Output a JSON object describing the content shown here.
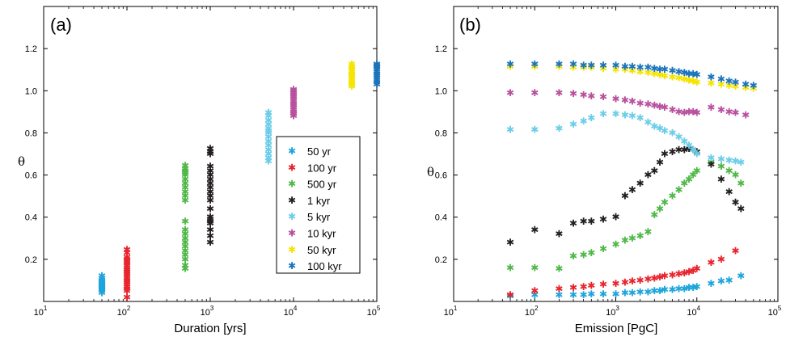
{
  "chart_data": [
    {
      "type": "scatter",
      "panel_label": "(a)",
      "xlabel": "Duration [yrs]",
      "ylabel": "θ",
      "xscale": "log",
      "xlim": [
        10,
        100000
      ],
      "ylim": [
        0,
        1.4
      ],
      "xticks": [
        {
          "value": 10,
          "base": "10",
          "exp": "1"
        },
        {
          "value": 100,
          "base": "10",
          "exp": "2"
        },
        {
          "value": 1000,
          "base": "10",
          "exp": "3"
        },
        {
          "value": 10000,
          "base": "10",
          "exp": "4"
        },
        {
          "value": 100000,
          "base": "10",
          "exp": "5"
        }
      ],
      "yticks": [
        "0.2",
        "0.4",
        "0.6",
        "0.8",
        "1.0",
        "1.2"
      ],
      "grid": false,
      "legend_position": "right",
      "series": [
        {
          "name": "50 yr",
          "color": "#1ea5dc",
          "x": [
            50,
            50,
            50,
            50,
            50,
            50,
            50,
            50,
            50,
            50,
            50,
            50,
            50,
            50
          ],
          "y": [
            0.04,
            0.05,
            0.055,
            0.06,
            0.065,
            0.07,
            0.075,
            0.08,
            0.085,
            0.09,
            0.095,
            0.1,
            0.11,
            0.12
          ]
        },
        {
          "name": "100 yr",
          "color": "#e8242d",
          "x": [
            100,
            100,
            100,
            100,
            100,
            100,
            100,
            100,
            100,
            100,
            100,
            100,
            100,
            100,
            100,
            100,
            100,
            100,
            100,
            100
          ],
          "y": [
            0.02,
            0.05,
            0.06,
            0.07,
            0.08,
            0.09,
            0.1,
            0.11,
            0.12,
            0.13,
            0.14,
            0.15,
            0.16,
            0.17,
            0.18,
            0.19,
            0.2,
            0.21,
            0.23,
            0.245
          ]
        },
        {
          "name": "500 yr",
          "color": "#50b848",
          "x": [
            500,
            500,
            500,
            500,
            500,
            500,
            500,
            500,
            500,
            500,
            500,
            500,
            500,
            500,
            500,
            500,
            500,
            500,
            500,
            500,
            500,
            500
          ],
          "y": [
            0.155,
            0.17,
            0.2,
            0.22,
            0.24,
            0.26,
            0.28,
            0.3,
            0.32,
            0.34,
            0.38,
            0.48,
            0.5,
            0.52,
            0.54,
            0.56,
            0.58,
            0.6,
            0.61,
            0.62,
            0.63,
            0.645
          ]
        },
        {
          "name": "1 kyr",
          "color": "#231f20",
          "x": [
            1000,
            1000,
            1000,
            1000,
            1000,
            1000,
            1000,
            1000,
            1000,
            1000,
            1000,
            1000,
            1000,
            1000,
            1000,
            1000,
            1000,
            1000,
            1000,
            1000
          ],
          "y": [
            0.28,
            0.31,
            0.34,
            0.37,
            0.38,
            0.39,
            0.4,
            0.44,
            0.48,
            0.5,
            0.52,
            0.54,
            0.56,
            0.58,
            0.6,
            0.62,
            0.64,
            0.7,
            0.71,
            0.725
          ]
        },
        {
          "name": "5 kyr",
          "color": "#6ccde8",
          "x": [
            5000,
            5000,
            5000,
            5000,
            5000,
            5000,
            5000,
            5000,
            5000,
            5000,
            5000,
            5000,
            5000,
            5000
          ],
          "y": [
            0.665,
            0.68,
            0.7,
            0.72,
            0.74,
            0.76,
            0.78,
            0.8,
            0.81,
            0.82,
            0.84,
            0.86,
            0.88,
            0.895
          ]
        },
        {
          "name": "10 kyr",
          "color": "#b8509e",
          "x": [
            10000,
            10000,
            10000,
            10000,
            10000,
            10000,
            10000,
            10000,
            10000,
            10000,
            10000,
            10000,
            10000,
            10000
          ],
          "y": [
            0.88,
            0.89,
            0.9,
            0.91,
            0.92,
            0.93,
            0.94,
            0.95,
            0.96,
            0.97,
            0.98,
            0.99,
            1.0,
            1.005
          ]
        },
        {
          "name": "50 kyr",
          "color": "#f5e400",
          "x": [
            50000,
            50000,
            50000,
            50000,
            50000,
            50000,
            50000,
            50000,
            50000,
            50000,
            50000,
            50000
          ],
          "y": [
            1.02,
            1.03,
            1.04,
            1.05,
            1.06,
            1.07,
            1.08,
            1.09,
            1.1,
            1.11,
            1.115,
            1.125
          ]
        },
        {
          "name": "100 kyr",
          "color": "#1a74bb",
          "x": [
            100000,
            100000,
            100000,
            100000,
            100000,
            100000,
            100000,
            100000,
            100000,
            100000,
            100000,
            100000
          ],
          "y": [
            1.03,
            1.04,
            1.05,
            1.06,
            1.07,
            1.08,
            1.09,
            1.1,
            1.11,
            1.115,
            1.12,
            1.125
          ]
        }
      ]
    },
    {
      "type": "scatter",
      "panel_label": "(b)",
      "xlabel": "Emission  [PgC]",
      "ylabel": "θ",
      "xscale": "log",
      "xlim": [
        10,
        100000
      ],
      "ylim": [
        0,
        1.4
      ],
      "xticks": [
        {
          "value": 10,
          "base": "10",
          "exp": "1"
        },
        {
          "value": 100,
          "base": "10",
          "exp": "2"
        },
        {
          "value": 1000,
          "base": "10",
          "exp": "3"
        },
        {
          "value": 10000,
          "base": "10",
          "exp": "4"
        },
        {
          "value": 100000,
          "base": "10",
          "exp": "5"
        }
      ],
      "yticks": [
        "0.2",
        "0.4",
        "0.6",
        "0.8",
        "1.0",
        "1.2"
      ],
      "grid": false,
      "series": [
        {
          "name": "50 yr",
          "color": "#1ea5dc",
          "x": [
            50,
            100,
            200,
            300,
            400,
            500,
            700,
            1000,
            1300,
            1600,
            2000,
            2500,
            3000,
            3500,
            4000,
            5000,
            6000,
            7000,
            8000,
            9000,
            10000,
            15000,
            20000,
            25000,
            35000
          ],
          "y": [
            0.025,
            0.03,
            0.03,
            0.03,
            0.03,
            0.035,
            0.035,
            0.035,
            0.04,
            0.04,
            0.045,
            0.045,
            0.05,
            0.05,
            0.055,
            0.055,
            0.06,
            0.06,
            0.065,
            0.065,
            0.07,
            0.085,
            0.095,
            0.1,
            0.12
          ]
        },
        {
          "name": "100 yr",
          "color": "#e8242d",
          "x": [
            50,
            100,
            200,
            300,
            400,
            500,
            700,
            1000,
            1300,
            1600,
            2000,
            2500,
            3000,
            3500,
            4000,
            5000,
            6000,
            7000,
            8000,
            9000,
            10000,
            15000,
            20000,
            30000
          ],
          "y": [
            0.03,
            0.05,
            0.06,
            0.065,
            0.07,
            0.075,
            0.08,
            0.085,
            0.09,
            0.095,
            0.1,
            0.105,
            0.11,
            0.115,
            0.12,
            0.125,
            0.13,
            0.135,
            0.14,
            0.145,
            0.155,
            0.185,
            0.2,
            0.24
          ]
        },
        {
          "name": "500 yr",
          "color": "#50b848",
          "x": [
            50,
            100,
            200,
            300,
            400,
            500,
            700,
            1000,
            1300,
            1600,
            2000,
            2500,
            3000,
            3500,
            4000,
            5000,
            6000,
            7000,
            8000,
            9000,
            10000,
            15000,
            20000,
            25000,
            30000,
            35000
          ],
          "y": [
            0.16,
            0.16,
            0.155,
            0.215,
            0.22,
            0.23,
            0.25,
            0.27,
            0.29,
            0.3,
            0.31,
            0.33,
            0.41,
            0.44,
            0.47,
            0.5,
            0.53,
            0.56,
            0.58,
            0.6,
            0.62,
            0.66,
            0.64,
            0.62,
            0.6,
            0.56
          ]
        },
        {
          "name": "1 kyr",
          "color": "#231f20",
          "x": [
            50,
            100,
            200,
            300,
            400,
            500,
            700,
            1000,
            1300,
            1600,
            2000,
            2500,
            3000,
            3500,
            4000,
            5000,
            6000,
            7000,
            8000,
            9000,
            10000,
            15000,
            20000,
            25000,
            30000,
            35000
          ],
          "y": [
            0.28,
            0.34,
            0.32,
            0.37,
            0.38,
            0.38,
            0.39,
            0.4,
            0.5,
            0.53,
            0.56,
            0.6,
            0.62,
            0.66,
            0.7,
            0.71,
            0.72,
            0.72,
            0.725,
            0.72,
            0.71,
            0.65,
            0.58,
            0.52,
            0.47,
            0.44
          ]
        },
        {
          "name": "5 kyr",
          "color": "#6ccde8",
          "x": [
            50,
            100,
            200,
            300,
            400,
            500,
            700,
            1000,
            1300,
            1600,
            2000,
            2500,
            3000,
            3500,
            4000,
            5000,
            6000,
            7000,
            8000,
            9000,
            10000,
            15000,
            20000,
            25000,
            30000,
            35000
          ],
          "y": [
            0.815,
            0.815,
            0.82,
            0.84,
            0.855,
            0.87,
            0.89,
            0.89,
            0.885,
            0.88,
            0.87,
            0.85,
            0.83,
            0.82,
            0.81,
            0.8,
            0.78,
            0.76,
            0.74,
            0.72,
            0.7,
            0.68,
            0.675,
            0.67,
            0.665,
            0.66
          ]
        },
        {
          "name": "10 kyr",
          "color": "#b8509e",
          "x": [
            50,
            100,
            200,
            300,
            400,
            500,
            700,
            1000,
            1300,
            1600,
            2000,
            2500,
            3000,
            3500,
            4000,
            5000,
            6000,
            7000,
            8000,
            9000,
            10000,
            15000,
            20000,
            25000,
            30000,
            40000
          ],
          "y": [
            0.99,
            0.99,
            0.99,
            0.985,
            0.98,
            0.975,
            0.97,
            0.96,
            0.955,
            0.95,
            0.94,
            0.935,
            0.93,
            0.925,
            0.92,
            0.91,
            0.9,
            0.895,
            0.9,
            0.9,
            0.895,
            0.92,
            0.91,
            0.9,
            0.895,
            0.885
          ]
        },
        {
          "name": "50 kyr",
          "color": "#f5e400",
          "x": [
            50,
            100,
            200,
            300,
            400,
            500,
            700,
            1000,
            1300,
            1600,
            2000,
            2500,
            3000,
            3500,
            4000,
            5000,
            6000,
            7000,
            8000,
            9000,
            10000,
            15000,
            20000,
            25000,
            30000,
            40000,
            50000
          ],
          "y": [
            1.115,
            1.115,
            1.115,
            1.11,
            1.11,
            1.11,
            1.105,
            1.1,
            1.1,
            1.095,
            1.09,
            1.085,
            1.08,
            1.075,
            1.07,
            1.065,
            1.06,
            1.055,
            1.05,
            1.045,
            1.04,
            1.035,
            1.03,
            1.025,
            1.02,
            1.015,
            1.01
          ]
        },
        {
          "name": "100 kyr",
          "color": "#1a74bb",
          "x": [
            50,
            100,
            200,
            300,
            400,
            500,
            700,
            1000,
            1300,
            1600,
            2000,
            2500,
            3000,
            3500,
            4000,
            5000,
            6000,
            7000,
            8000,
            9000,
            10000,
            15000,
            20000,
            25000,
            30000,
            40000,
            50000
          ],
          "y": [
            1.125,
            1.125,
            1.125,
            1.125,
            1.12,
            1.12,
            1.12,
            1.12,
            1.115,
            1.115,
            1.11,
            1.11,
            1.105,
            1.1,
            1.1,
            1.095,
            1.09,
            1.085,
            1.08,
            1.08,
            1.075,
            1.065,
            1.055,
            1.045,
            1.04,
            1.03,
            1.025
          ]
        }
      ]
    }
  ]
}
